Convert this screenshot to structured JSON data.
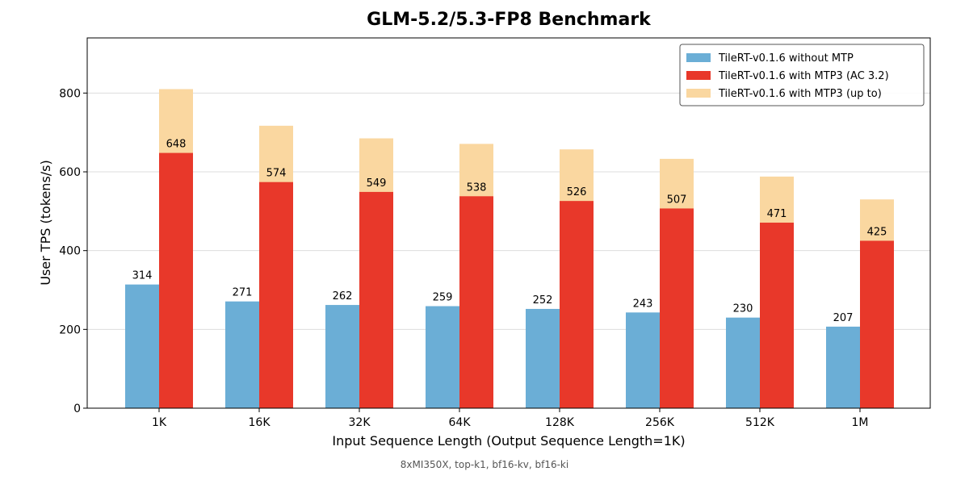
{
  "chart_data": {
    "type": "bar",
    "title": "GLM-5.2/5.3-FP8 Benchmark",
    "xlabel": "Input Sequence Length (Output Sequence Length=1K)",
    "ylabel": "User TPS (tokens/s)",
    "categories": [
      "1K",
      "16K",
      "32K",
      "64K",
      "128K",
      "256K",
      "512K",
      "1M"
    ],
    "ylim": [
      0,
      940
    ],
    "yticks": [
      0,
      200,
      400,
      600,
      800
    ],
    "grid": true,
    "legend_position": "top-right",
    "series": [
      {
        "name": "TileRT-v0.1.6 without MTP",
        "color": "#6baed6",
        "stack": "a",
        "values": [
          314,
          271,
          262,
          259,
          252,
          243,
          230,
          207
        ],
        "data_labels": true
      },
      {
        "name": "TileRT-v0.1.6 with MTP3 (AC 3.2)",
        "color": "#e8382a",
        "stack": "b",
        "values": [
          648,
          574,
          549,
          538,
          526,
          507,
          471,
          425
        ],
        "data_labels": true
      },
      {
        "name": "TileRT-v0.1.6 with MTP3 (up to)",
        "color": "#fad7a0",
        "stack": "b-top",
        "values": [
          810,
          717,
          685,
          671,
          657,
          633,
          588,
          530
        ],
        "data_labels": false
      }
    ]
  },
  "caption": "8xMI350X, top-k1, bf16-kv, bf16-ki"
}
